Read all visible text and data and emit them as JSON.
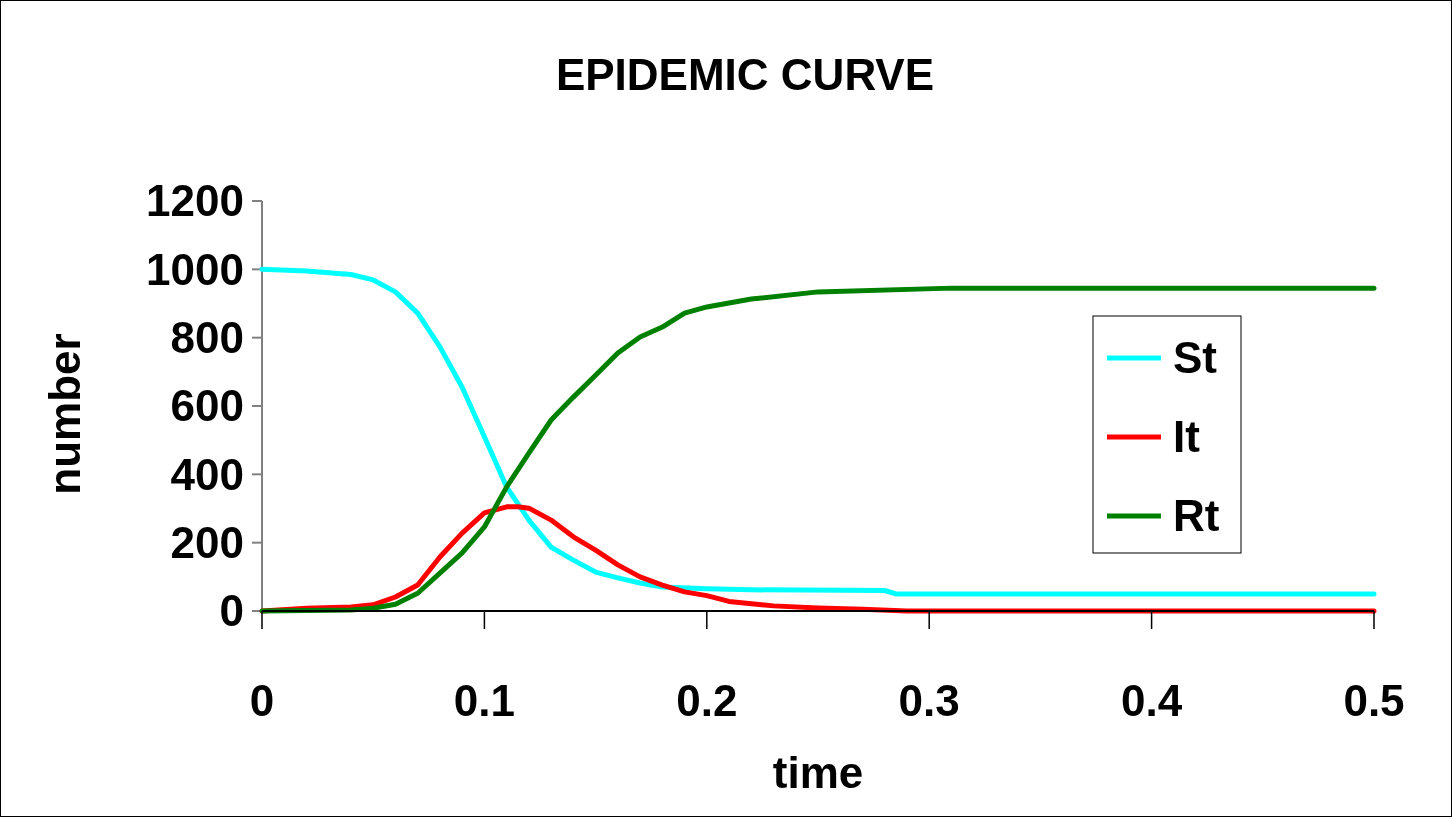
{
  "chart_data": {
    "type": "line",
    "title": "EPIDEMIC CURVE",
    "xlabel": "time",
    "ylabel": "number",
    "xlim": [
      0,
      0.5
    ],
    "xticks": [
      0,
      0.1,
      0.2,
      0.3,
      0.4,
      0.5
    ],
    "ylim": [
      0,
      1200
    ],
    "yticks": [
      0,
      200,
      400,
      600,
      800,
      1000,
      1200
    ],
    "grid": false,
    "legend": "right",
    "series": [
      {
        "name": "St",
        "color": "#00ffff",
        "x": [
          0,
          0.02,
          0.03,
          0.04,
          0.05,
          0.06,
          0.07,
          0.08,
          0.09,
          0.1,
          0.11,
          0.12,
          0.13,
          0.14,
          0.15,
          0.16,
          0.17,
          0.18,
          0.2,
          0.22,
          0.28,
          0.285,
          0.5
        ],
        "values": [
          1000,
          995,
          990,
          985,
          969,
          934,
          872,
          773,
          655,
          510,
          363,
          266,
          187,
          149,
          114,
          97,
          82,
          70,
          65,
          62,
          60,
          50,
          50
        ]
      },
      {
        "name": "It",
        "color": "#ff0000",
        "x": [
          0,
          0.02,
          0.04,
          0.05,
          0.06,
          0.07,
          0.08,
          0.09,
          0.1,
          0.11,
          0.115,
          0.12,
          0.13,
          0.14,
          0.15,
          0.16,
          0.17,
          0.18,
          0.19,
          0.2,
          0.21,
          0.23,
          0.25,
          0.27,
          0.29,
          0.5
        ],
        "values": [
          0,
          8,
          12,
          18,
          41,
          76,
          158,
          228,
          287,
          305,
          305,
          301,
          266,
          217,
          178,
          135,
          100,
          76,
          56,
          45,
          28,
          15,
          9,
          5,
          0,
          0
        ]
      },
      {
        "name": "Rt",
        "color": "#008000",
        "x": [
          0,
          0.04,
          0.05,
          0.06,
          0.07,
          0.08,
          0.09,
          0.1,
          0.11,
          0.12,
          0.13,
          0.14,
          0.15,
          0.16,
          0.17,
          0.18,
          0.19,
          0.2,
          0.22,
          0.25,
          0.31,
          0.5
        ],
        "values": [
          0,
          3,
          8,
          20,
          52,
          111,
          170,
          246,
          363,
          462,
          559,
          626,
          690,
          755,
          802,
          831,
          872,
          890,
          913,
          934,
          945,
          945
        ]
      }
    ]
  }
}
